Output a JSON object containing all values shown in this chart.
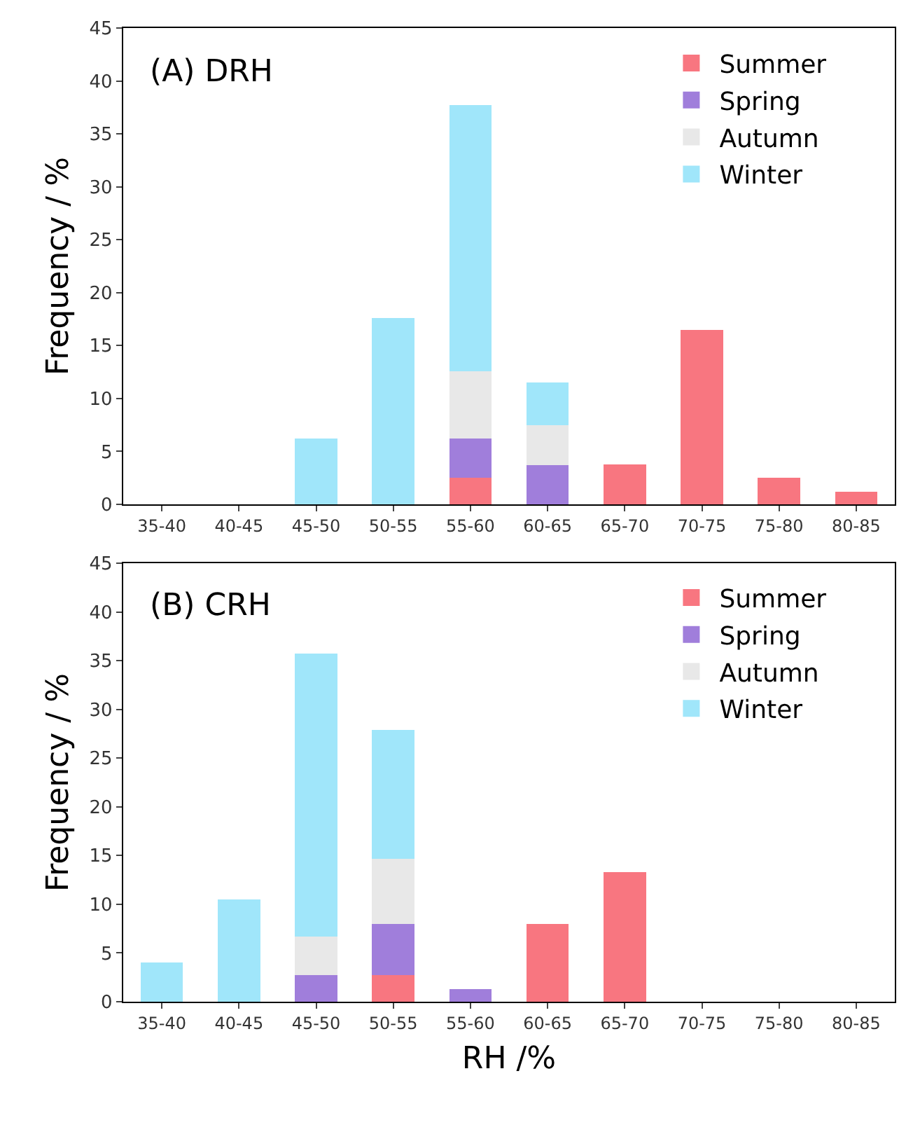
{
  "chart_data": [
    {
      "type": "bar",
      "title": "(A) DRH",
      "ylabel": "Frequency / %",
      "stacked": true,
      "legend": "top right",
      "categories": [
        "35-40",
        "40-45",
        "45-50",
        "50-55",
        "55-60",
        "60-65",
        "65-70",
        "70-75",
        "75-80",
        "80-85"
      ],
      "ylim": [
        0,
        45
      ],
      "yticks": [
        0,
        5,
        10,
        15,
        20,
        25,
        30,
        35,
        40,
        45
      ],
      "series": [
        {
          "name": "Summer",
          "color": "#f87680",
          "values": [
            null,
            null,
            null,
            null,
            2.5,
            null,
            3.8,
            16.5,
            2.5,
            1.2
          ]
        },
        {
          "name": "Spring",
          "color": "#a07edb",
          "values": [
            null,
            null,
            null,
            null,
            3.7,
            3.7,
            null,
            null,
            null,
            null
          ]
        },
        {
          "name": "Autumn",
          "color": "#e8e8e8",
          "values": [
            null,
            null,
            null,
            null,
            6.4,
            3.8,
            null,
            null,
            null,
            null
          ]
        },
        {
          "name": "Winter",
          "color": "#a0e6fa",
          "values": [
            null,
            null,
            6.2,
            17.6,
            25.1,
            4.0,
            null,
            null,
            null,
            null
          ]
        }
      ]
    },
    {
      "type": "bar",
      "title": "(B) CRH",
      "xlabel": "RH /%",
      "ylabel": "Frequency / %",
      "stacked": true,
      "legend": "top right",
      "categories": [
        "35-40",
        "40-45",
        "45-50",
        "50-55",
        "55-60",
        "60-65",
        "65-70",
        "70-75",
        "75-80",
        "80-85"
      ],
      "ylim": [
        0,
        45
      ],
      "yticks": [
        0,
        5,
        10,
        15,
        20,
        25,
        30,
        35,
        40,
        45
      ],
      "series": [
        {
          "name": "Summer",
          "color": "#f87680",
          "values": [
            null,
            null,
            null,
            2.7,
            null,
            8.0,
            13.3,
            null,
            null,
            null
          ]
        },
        {
          "name": "Spring",
          "color": "#a07edb",
          "values": [
            null,
            null,
            2.7,
            5.3,
            1.3,
            null,
            null,
            null,
            null,
            null
          ]
        },
        {
          "name": "Autumn",
          "color": "#e8e8e8",
          "values": [
            null,
            null,
            4.0,
            6.7,
            null,
            null,
            null,
            null,
            null,
            null
          ]
        },
        {
          "name": "Winter",
          "color": "#a0e6fa",
          "values": [
            4.0,
            10.5,
            29.0,
            13.2,
            null,
            null,
            null,
            null,
            null,
            null
          ]
        }
      ]
    }
  ]
}
